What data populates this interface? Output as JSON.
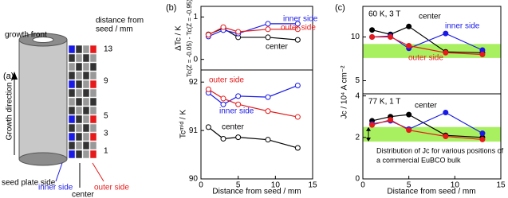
{
  "schematic": {
    "panel_label": "(a)",
    "growth_front": "growth front",
    "distance_label": [
      "distance from",
      "seed / mm"
    ],
    "growth_direction": "Growth direction",
    "seed_plate_side": "seed plate side",
    "inner_side": "inner side",
    "center": "center",
    "outer_side": "outer side",
    "positions": [
      "13",
      "9",
      "5",
      "3",
      "1"
    ]
  },
  "chart_data": [
    {
      "type": "line",
      "panel_label": "(b)",
      "ylabel": [
        "ΔTc / K",
        "Tc(Z = -0.05) - Tc(Z = -0.95)"
      ],
      "x": [
        1,
        3,
        5,
        9,
        13
      ],
      "xlim": [
        0,
        15
      ],
      "ylim": [
        -0.25,
        1.25
      ],
      "yticks": [
        0,
        1
      ],
      "marker": "open",
      "series": [
        {
          "name": "center",
          "color": "#000000",
          "values": [
            0.59,
            0.73,
            0.52,
            0.52,
            0.46
          ]
        },
        {
          "name": "inner side",
          "color": "#1a1ae6",
          "values": [
            0.54,
            0.69,
            0.61,
            0.84,
            0.84
          ]
        },
        {
          "name": "outer side",
          "color": "#e61a1a",
          "values": [
            0.58,
            0.76,
            0.65,
            0.71,
            0.71
          ]
        }
      ]
    },
    {
      "type": "line",
      "ylabel": "Tcᵐⁱᵈ / K",
      "xlabel": "Distance from seed / mm",
      "x": [
        1,
        3,
        5,
        9,
        13
      ],
      "xlim": [
        0,
        15
      ],
      "xticks": [
        0,
        5,
        10,
        15
      ],
      "ylim": [
        90,
        92.25
      ],
      "yticks": [
        90,
        91,
        92
      ],
      "marker": "open",
      "series": [
        {
          "name": "center",
          "color": "#000000",
          "values": [
            91.07,
            90.83,
            90.86,
            90.81,
            90.64
          ]
        },
        {
          "name": "inner side",
          "color": "#1a1ae6",
          "values": [
            91.78,
            91.54,
            91.71,
            91.69,
            91.93
          ]
        },
        {
          "name": "outer side",
          "color": "#e61a1a",
          "values": [
            91.85,
            91.66,
            91.54,
            91.4,
            91.28
          ]
        }
      ]
    },
    {
      "type": "line",
      "panel_label": "(c)",
      "ylabel": "Jc / 10⁴ A cm⁻²",
      "condition": "60 K, 3 T",
      "x": [
        1,
        3,
        5,
        9,
        13
      ],
      "xlim": [
        0,
        15
      ],
      "ylim": [
        3.5,
        13.5
      ],
      "yticks": [
        5,
        10
      ],
      "marker": "filled",
      "band": [
        7.6,
        9.2
      ],
      "band_color": "#a8f060",
      "series": [
        {
          "name": "center",
          "color": "#000000",
          "values": [
            10.8,
            10.3,
            11.2,
            8.3,
            8.2
          ]
        },
        {
          "name": "inner side",
          "color": "#1a1ae6",
          "values": [
            10.0,
            10.1,
            8.7,
            10.4,
            8.5
          ]
        },
        {
          "name": "outer side",
          "color": "#e61a1a",
          "values": [
            10.0,
            10.0,
            9.0,
            8.2,
            8.0
          ]
        }
      ]
    },
    {
      "type": "line",
      "condition": "77 K, 1 T",
      "xlabel": "Distance from seed / mm",
      "x": [
        1,
        3,
        5,
        9,
        13
      ],
      "xlim": [
        0,
        15
      ],
      "xticks": [
        0,
        5,
        10,
        15
      ],
      "ylim": [
        0,
        4.1
      ],
      "yticks": [
        0,
        2,
        4
      ],
      "marker": "filled",
      "band": [
        1.8,
        2.5
      ],
      "band_color": "#a8f060",
      "annotation": [
        "Distribution of Jc for various positions of",
        "a commercial EuBCO bulk"
      ],
      "series": [
        {
          "name": "center",
          "color": "#000000",
          "values": [
            2.8,
            3.0,
            3.1,
            2.1,
            2.0
          ]
        },
        {
          "color": "#1a1ae6",
          "values": [
            2.65,
            2.8,
            2.4,
            3.2,
            2.2
          ]
        },
        {
          "color": "#e61a1a",
          "values": [
            2.6,
            2.85,
            2.35,
            2.05,
            1.9
          ]
        }
      ]
    }
  ]
}
